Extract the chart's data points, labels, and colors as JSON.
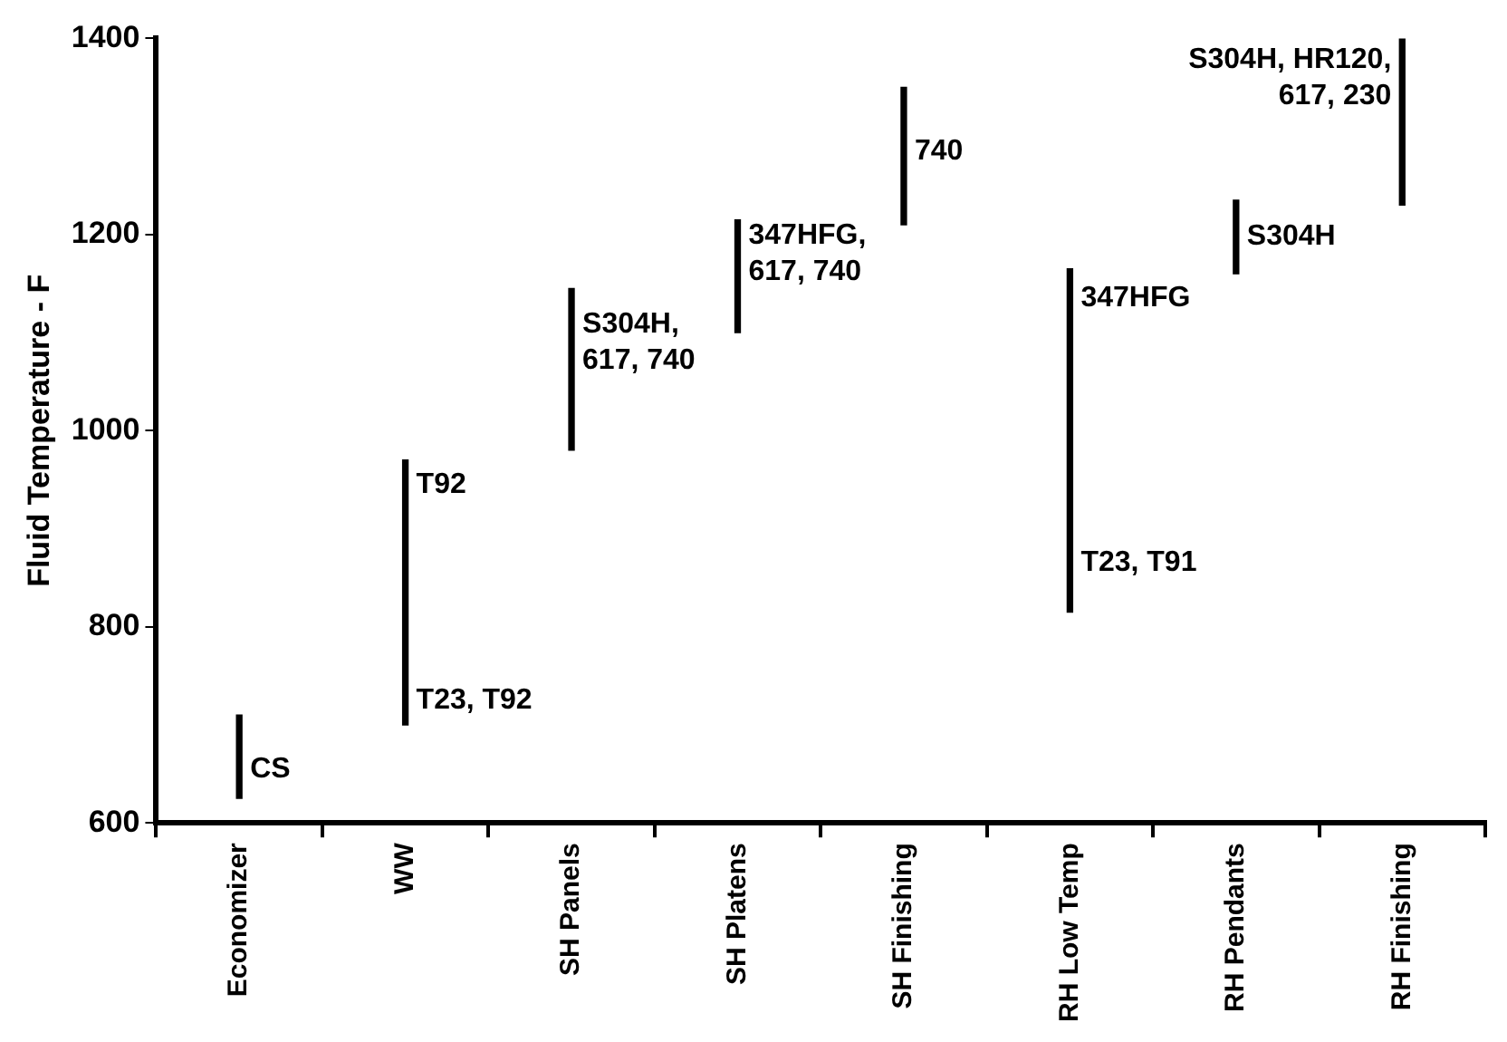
{
  "chart_data": {
    "type": "bar",
    "ylabel": "Fluid Temperature - F",
    "categories": [
      "Economizer",
      "WW",
      "SH Panels",
      "SH Platens",
      "SH Finishing",
      "RH Low Temp",
      "RH Pendants",
      "RH Finishing"
    ],
    "base": [
      625,
      700,
      980,
      1100,
      1210,
      815,
      1160,
      1230
    ],
    "values": [
      85,
      270,
      165,
      115,
      140,
      350,
      75,
      170
    ],
    "color": "#000000",
    "ylim": [
      600,
      1400
    ],
    "yticks": [
      600,
      800,
      1000,
      1200,
      1400
    ],
    "grid": false,
    "legend": false,
    "annotations": [
      {
        "text": "CS",
        "x": "Economizer",
        "y": 655
      },
      {
        "text": "T92",
        "x": "WW",
        "y": 945
      },
      {
        "text": "T23, T92",
        "x": "WW",
        "y": 725
      },
      {
        "text": "S304H,\n617, 740",
        "x": "SH Panels",
        "y": 1090
      },
      {
        "text": "347HFG,\n617, 740",
        "x": "SH Platens",
        "y": 1180
      },
      {
        "text": "740",
        "x": "SH Finishing",
        "y": 1285
      },
      {
        "text": "347HFG",
        "x": "RH Low Temp",
        "y": 1135
      },
      {
        "text": "T23, T91",
        "x": "RH Low Temp",
        "y": 865
      },
      {
        "text": "S304H",
        "x": "RH Pendants",
        "y": 1198
      },
      {
        "text": "S304H, HR120,\n617, 230",
        "x": "RH Finishing",
        "y": 1360
      }
    ]
  }
}
